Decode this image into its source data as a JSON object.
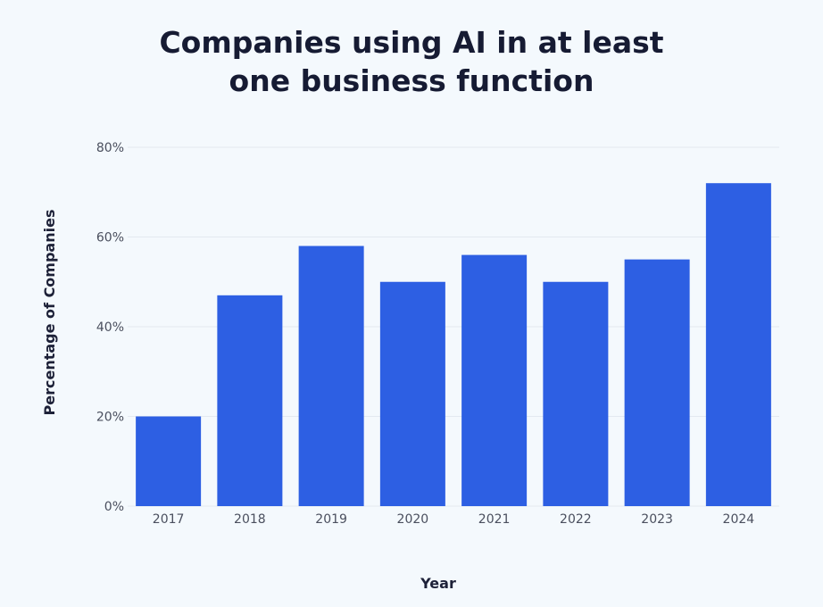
{
  "chart_data": {
    "type": "bar",
    "title_lines": [
      "Companies using AI in at least",
      "one business function"
    ],
    "xlabel": "Year",
    "ylabel": "Percentage of Companies",
    "categories": [
      "2017",
      "2018",
      "2019",
      "2020",
      "2021",
      "2022",
      "2023",
      "2024"
    ],
    "values": [
      20,
      47,
      58,
      50,
      56,
      50,
      55,
      72
    ],
    "ylim": [
      0,
      80
    ],
    "yticks": [
      0,
      20,
      40,
      60,
      80
    ],
    "ytick_labels": [
      "0%",
      "20%",
      "40%",
      "60%",
      "80%"
    ],
    "grid": true,
    "bar_color": "#2d5fe3",
    "grid_color": "#e3e9f0",
    "background": "#f4f9fd"
  }
}
